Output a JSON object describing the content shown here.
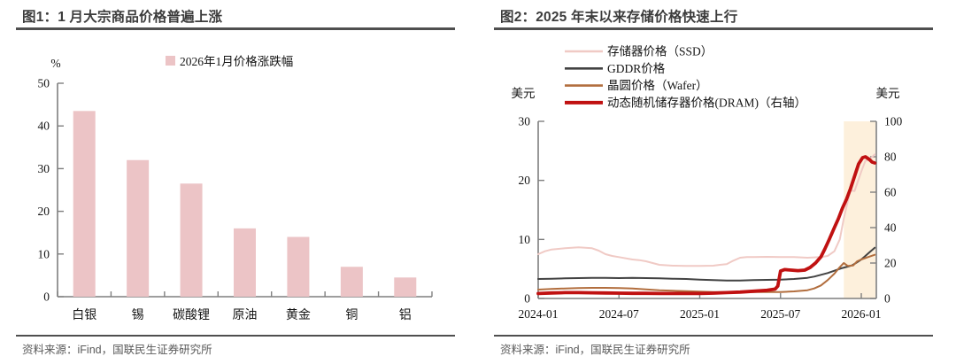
{
  "panels": [
    {
      "title": "图1：1 月大宗商品价格普遍上涨",
      "source": "资料来源：iFind，国联民生证券研究所"
    },
    {
      "title": "图2：2025 年末以来存储价格快速上行",
      "source": "资料来源：iFind，国联民生证券研究所"
    }
  ],
  "colors": {
    "bar_pink": "#ecc4c6",
    "ssd_pink": "#f0cac5",
    "gddr_gray": "#424242",
    "wafer_brown": "#b26e3e",
    "dram_red": "#c01111",
    "highlight_band": "#fdf0dc",
    "axis_gray": "#7f7f7f",
    "title_gray": "#3c3c3c",
    "source_gray": "#5a5a5a"
  },
  "chart_data": [
    {
      "type": "bar",
      "title": "图1：1 月大宗商品价格普遍上涨",
      "unit_label": "%",
      "legend": "2026年1月价格涨跌幅",
      "categories": [
        "白银",
        "锡",
        "碳酸锂",
        "原油",
        "黄金",
        "铜",
        "铝"
      ],
      "values": [
        43.5,
        32,
        26.5,
        16,
        14,
        7,
        4.5
      ],
      "ylim": [
        0,
        50
      ],
      "yticks": [
        0,
        10,
        20,
        30,
        40,
        50
      ],
      "grid": false,
      "legend_position": "top",
      "bar_color": "#ecc4c6"
    },
    {
      "type": "line",
      "title": "图2：2025 年末以来存储价格快速上行",
      "left_axis_label": "美元",
      "right_axis_label": "美元",
      "left_ylim": [
        0,
        30
      ],
      "left_yticks": [
        0,
        10,
        20,
        30
      ],
      "right_ylim": [
        0,
        100
      ],
      "right_yticks": [
        0,
        20,
        40,
        60,
        80,
        100
      ],
      "x_tick_labels": [
        "2024-01",
        "2024-07",
        "2025-01",
        "2025-07",
        "2026-01"
      ],
      "x_tick_months": [
        0,
        6,
        12,
        18,
        24
      ],
      "x_range_months": [
        0,
        25
      ],
      "grid": false,
      "legend_position": "top",
      "highlight_band": {
        "from_month": 22.7,
        "to_month": 25.1,
        "color": "#fdf0dc"
      },
      "series": [
        {
          "name": "存储器价格（SSD）",
          "axis": "left",
          "color": "#f0cac5",
          "width": 2,
          "points": [
            [
              0,
              7.5
            ],
            [
              0.5,
              8.0
            ],
            [
              1,
              8.3
            ],
            [
              2,
              8.5
            ],
            [
              3,
              8.65
            ],
            [
              4,
              8.5
            ],
            [
              4.5,
              8.1
            ],
            [
              5,
              7.5
            ],
            [
              5.5,
              7.2
            ],
            [
              6,
              7.0
            ],
            [
              7,
              6.6
            ],
            [
              7.5,
              6.5
            ],
            [
              8,
              6.3
            ],
            [
              8.5,
              6.0
            ],
            [
              9,
              5.7
            ],
            [
              10,
              5.55
            ],
            [
              11,
              5.5
            ],
            [
              12,
              5.5
            ],
            [
              13,
              5.55
            ],
            [
              13.5,
              5.7
            ],
            [
              14,
              5.8
            ],
            [
              14.5,
              6.4
            ],
            [
              15,
              6.9
            ],
            [
              15.5,
              7.0
            ],
            [
              16,
              7.0
            ],
            [
              17,
              7.05
            ],
            [
              18,
              7.0
            ],
            [
              19,
              7.0
            ],
            [
              20,
              6.9
            ],
            [
              21,
              7.0
            ],
            [
              21.5,
              7.2
            ],
            [
              22,
              8.0
            ],
            [
              22.4,
              10.0
            ],
            [
              22.7,
              13.5
            ],
            [
              23,
              16.5
            ],
            [
              23.2,
              18.3
            ],
            [
              23.5,
              18.2
            ],
            [
              23.7,
              19.5
            ],
            [
              24,
              21.5
            ],
            [
              24.3,
              23.3
            ],
            [
              24.6,
              23.5
            ],
            [
              25,
              24.4
            ]
          ]
        },
        {
          "name": "GDDR价格",
          "axis": "left",
          "color": "#424242",
          "width": 2,
          "points": [
            [
              0,
              3.3
            ],
            [
              1,
              3.35
            ],
            [
              2,
              3.4
            ],
            [
              3,
              3.45
            ],
            [
              4,
              3.5
            ],
            [
              5,
              3.5
            ],
            [
              6,
              3.45
            ],
            [
              7,
              3.5
            ],
            [
              8,
              3.45
            ],
            [
              9,
              3.4
            ],
            [
              10,
              3.35
            ],
            [
              11,
              3.3
            ],
            [
              12,
              3.2
            ],
            [
              13,
              3.1
            ],
            [
              14,
              3.05
            ],
            [
              15,
              3.05
            ],
            [
              16,
              3.1
            ],
            [
              17,
              3.15
            ],
            [
              18,
              3.2
            ],
            [
              19,
              3.3
            ],
            [
              20,
              3.5
            ],
            [
              20.5,
              3.7
            ],
            [
              21,
              4.0
            ],
            [
              21.5,
              4.3
            ],
            [
              22,
              4.7
            ],
            [
              22.5,
              5.1
            ],
            [
              23,
              5.4
            ],
            [
              23.3,
              5.6
            ],
            [
              23.6,
              6.0
            ],
            [
              24,
              6.6
            ],
            [
              24.3,
              7.2
            ],
            [
              24.6,
              7.8
            ],
            [
              25,
              8.6
            ]
          ]
        },
        {
          "name": "晶圆价格（Wafer）",
          "axis": "left",
          "color": "#b26e3e",
          "width": 2,
          "points": [
            [
              0,
              1.5
            ],
            [
              1,
              1.6
            ],
            [
              2,
              1.7
            ],
            [
              3,
              1.75
            ],
            [
              4,
              1.8
            ],
            [
              5,
              1.8
            ],
            [
              6,
              1.75
            ],
            [
              7,
              1.7
            ],
            [
              8,
              1.55
            ],
            [
              9,
              1.4
            ],
            [
              10,
              1.3
            ],
            [
              11,
              1.25
            ],
            [
              12,
              1.15
            ],
            [
              13,
              1.1
            ],
            [
              14,
              1.1
            ],
            [
              15,
              1.1
            ],
            [
              16,
              1.1
            ],
            [
              17,
              1.1
            ],
            [
              18,
              1.1
            ],
            [
              19,
              1.2
            ],
            [
              20,
              1.4
            ],
            [
              20.5,
              1.7
            ],
            [
              21,
              2.2
            ],
            [
              21.5,
              3.1
            ],
            [
              22,
              4.2
            ],
            [
              22.4,
              5.3
            ],
            [
              22.7,
              6.0
            ],
            [
              23,
              5.5
            ],
            [
              23.4,
              5.6
            ],
            [
              23.7,
              6.3
            ],
            [
              24,
              6.6
            ],
            [
              24.5,
              7.0
            ],
            [
              25,
              7.4
            ]
          ]
        },
        {
          "name": "动态随机储存器价格(DRAM)（右轴）",
          "axis": "right",
          "color": "#c01111",
          "width": 3.8,
          "points": [
            [
              0,
              2.8
            ],
            [
              1,
              3.1
            ],
            [
              2,
              3.3
            ],
            [
              3,
              3.3
            ],
            [
              4,
              3.2
            ],
            [
              5,
              3.1
            ],
            [
              6,
              3.0
            ],
            [
              7,
              2.9
            ],
            [
              8,
              2.9
            ],
            [
              9,
              2.8
            ],
            [
              10,
              2.8
            ],
            [
              11,
              2.8
            ],
            [
              12,
              2.8
            ],
            [
              13,
              3.0
            ],
            [
              14,
              3.3
            ],
            [
              15,
              3.6
            ],
            [
              16,
              4.1
            ],
            [
              17,
              4.6
            ],
            [
              17.6,
              5.3
            ],
            [
              17.8,
              7.0
            ],
            [
              18,
              15.5
            ],
            [
              18.3,
              16.3
            ],
            [
              18.8,
              16.0
            ],
            [
              19.3,
              15.7
            ],
            [
              19.8,
              16.0
            ],
            [
              20.2,
              17.5
            ],
            [
              20.6,
              20.0
            ],
            [
              21,
              23.5
            ],
            [
              21.3,
              28
            ],
            [
              21.6,
              33
            ],
            [
              22,
              40
            ],
            [
              22.3,
              45
            ],
            [
              22.6,
              51
            ],
            [
              22.9,
              56
            ],
            [
              23.2,
              62
            ],
            [
              23.5,
              69
            ],
            [
              23.8,
              76
            ],
            [
              24.1,
              79.5
            ],
            [
              24.3,
              80
            ],
            [
              24.6,
              78.5
            ],
            [
              24.8,
              77
            ],
            [
              25,
              76.5
            ]
          ]
        }
      ]
    }
  ]
}
